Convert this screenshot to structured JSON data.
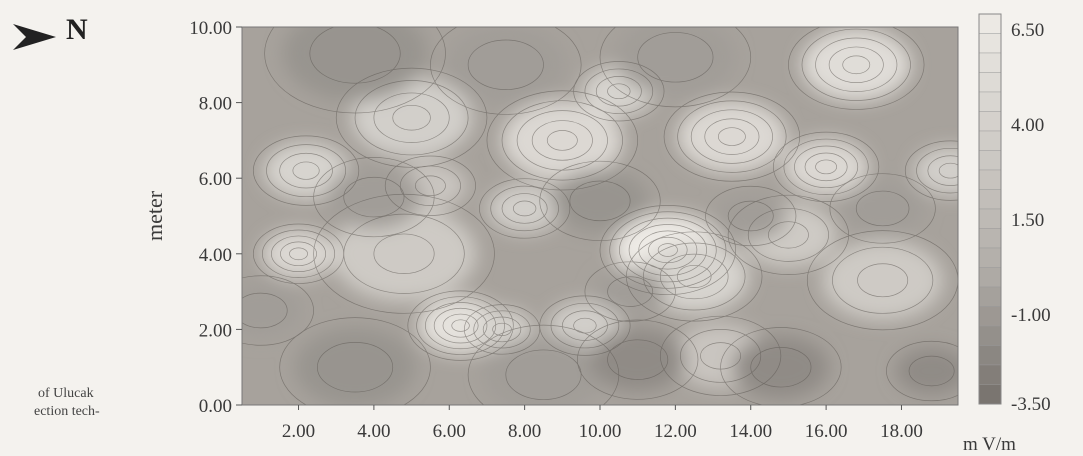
{
  "north_label": "N",
  "caption": {
    "line1": "of  Ulucak",
    "line2": "ection tech-"
  },
  "chart_data": {
    "type": "heatmap",
    "title": "",
    "xlabel": "",
    "ylabel": "meter",
    "xlim": [
      0.5,
      19.5
    ],
    "ylim": [
      0,
      10
    ],
    "x_ticks": [
      "2.00",
      "4.00",
      "6.00",
      "8.00",
      "10.00",
      "12.00",
      "14.00",
      "16.00",
      "18.00"
    ],
    "y_ticks": [
      "0.00",
      "2.00",
      "4.00",
      "6.00",
      "8.00",
      "10.00"
    ],
    "grid": false,
    "colorbar": {
      "unit": "m V/m",
      "range": [
        -3.5,
        6.5
      ],
      "tick_labels": [
        "6.50",
        "4.00",
        "1.50",
        "-1.00",
        "-3.50"
      ],
      "colors": {
        "low": "#eeebe6",
        "high": "#7d7873"
      }
    },
    "features": [
      {
        "x": 11.8,
        "y": 4.1,
        "v": 6.5,
        "s": 0.9
      },
      {
        "x": 6.3,
        "y": 2.1,
        "v": 5.5,
        "s": 0.7
      },
      {
        "x": 7.4,
        "y": 2.0,
        "v": 4.0,
        "s": 0.5
      },
      {
        "x": 12.5,
        "y": 3.4,
        "v": 4.0,
        "s": 0.9
      },
      {
        "x": 2.0,
        "y": 4.0,
        "v": 4.5,
        "s": 0.6
      },
      {
        "x": 2.2,
        "y": 6.2,
        "v": 4.0,
        "s": 0.7
      },
      {
        "x": 9.0,
        "y": 7.0,
        "v": 4.5,
        "s": 1.0
      },
      {
        "x": 13.5,
        "y": 7.1,
        "v": 4.5,
        "s": 0.9
      },
      {
        "x": 16.0,
        "y": 6.3,
        "v": 4.5,
        "s": 0.7
      },
      {
        "x": 16.8,
        "y": 9.0,
        "v": 5.0,
        "s": 0.9
      },
      {
        "x": 5.0,
        "y": 7.6,
        "v": 3.5,
        "s": 1.0
      },
      {
        "x": 4.8,
        "y": 4.0,
        "v": 3.0,
        "s": 1.2
      },
      {
        "x": 9.6,
        "y": 2.1,
        "v": 3.5,
        "s": 0.6
      },
      {
        "x": 13.2,
        "y": 1.3,
        "v": 2.5,
        "s": 0.8
      },
      {
        "x": 17.5,
        "y": 3.3,
        "v": 3.0,
        "s": 1.0
      },
      {
        "x": 15.0,
        "y": 4.5,
        "v": 3.0,
        "s": 0.8
      },
      {
        "x": 8.0,
        "y": 5.2,
        "v": 3.5,
        "s": 0.6
      },
      {
        "x": 19.3,
        "y": 6.2,
        "v": 3.5,
        "s": 0.6
      },
      {
        "x": 10.5,
        "y": 8.3,
        "v": 4.0,
        "s": 0.6
      },
      {
        "x": 5.5,
        "y": 5.8,
        "v": 2.5,
        "s": 0.6
      },
      {
        "x": 3.5,
        "y": 1.0,
        "v": -1.5,
        "s": 1.0
      },
      {
        "x": 8.5,
        "y": 0.8,
        "v": -1.0,
        "s": 1.0
      },
      {
        "x": 11.0,
        "y": 1.2,
        "v": -2.0,
        "s": 0.8
      },
      {
        "x": 14.8,
        "y": 1.0,
        "v": -2.0,
        "s": 0.8
      },
      {
        "x": 18.8,
        "y": 0.9,
        "v": -2.0,
        "s": 0.6
      },
      {
        "x": 3.5,
        "y": 9.3,
        "v": -1.5,
        "s": 1.2
      },
      {
        "x": 7.5,
        "y": 9.0,
        "v": -1.0,
        "s": 1.0
      },
      {
        "x": 12.0,
        "y": 9.2,
        "v": -1.0,
        "s": 1.0
      },
      {
        "x": 1.0,
        "y": 2.5,
        "v": -1.0,
        "s": 0.7
      },
      {
        "x": 4.0,
        "y": 5.5,
        "v": -1.0,
        "s": 0.8
      },
      {
        "x": 10.0,
        "y": 5.4,
        "v": -1.5,
        "s": 0.8
      },
      {
        "x": 14.0,
        "y": 5.0,
        "v": -1.0,
        "s": 0.6
      },
      {
        "x": 17.5,
        "y": 5.2,
        "v": -1.0,
        "s": 0.7
      },
      {
        "x": 10.8,
        "y": 3.0,
        "v": -1.0,
        "s": 0.6
      }
    ]
  }
}
